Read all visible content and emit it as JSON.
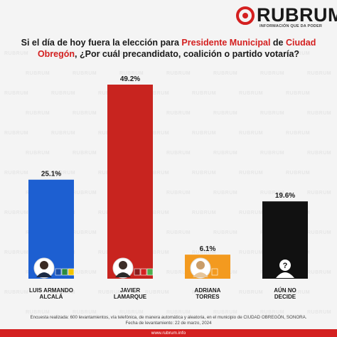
{
  "brand": {
    "name": "RUBRUM",
    "tagline": "INFORMACIÓN QUE DA PODER",
    "color": "#d42020"
  },
  "question": {
    "p1": "Si el día de hoy fuera la elección para ",
    "h1": "Presidente Municipal",
    "p2": " de ",
    "h2": "Ciudad Obregón",
    "p3": ", ¿Por cuál precandidato, coalición o partido votaría?"
  },
  "chart_data": {
    "type": "bar",
    "categories": [
      "LUIS ARMANDO ALCALÁ",
      "JAVIER LAMARQUE",
      "ADRIANA TORRES",
      "AÚN NO DECIDE"
    ],
    "values": [
      25.1,
      49.2,
      6.1,
      19.6
    ],
    "value_labels": [
      "25.1%",
      "49.2%",
      "6.1%",
      "19.6%"
    ],
    "colors": [
      "#1d5fd1",
      "#c8241f",
      "#f39a1f",
      "#111111"
    ],
    "ylim": [
      0,
      49.2
    ],
    "grid": false,
    "legend": "none"
  },
  "candidates": [
    {
      "line1": "LUIS ARMANDO",
      "line2": "ALCALÁ",
      "party_icons": [
        "pan-logo-icon",
        "pri-logo-icon",
        "prd-logo-icon"
      ]
    },
    {
      "line1": "JAVIER",
      "line2": "LAMARQUE",
      "party_icons": [
        "morena-logo-icon",
        "pt-logo-icon",
        "pvem-logo-icon"
      ]
    },
    {
      "line1": "ADRIANA",
      "line2": "TORRES",
      "party_icons": [
        "mc-logo-icon"
      ]
    },
    {
      "line1": "AÚN NO",
      "line2": "DECIDE",
      "party_icons": []
    }
  ],
  "footer": {
    "line1": "Encuesta realizada: 600 levantamientos, vía telefónica, de manera automática y aleatoria, en el municipio de CIUDAD OBREGÓN, SONORA.",
    "line2": "Fecha de levantamiento: 22 de marzo, 2024",
    "url": "www.rubrum.info"
  },
  "watermark": "RUBRUM"
}
